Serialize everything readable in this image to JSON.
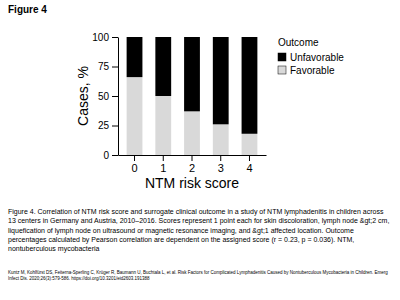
{
  "chart_data": {
    "type": "bar",
    "stacked": true,
    "title": "Figure 4",
    "x_label": "NTM risk score",
    "y_label": "Cases, %",
    "categories": [
      "0",
      "1",
      "2",
      "3",
      "4"
    ],
    "series": [
      {
        "name": "Unfavorable",
        "color": "#000000",
        "values": [
          34,
          50,
          63,
          74,
          82
        ]
      },
      {
        "name": "Favorable",
        "color": "#d9d9d9",
        "values": [
          66,
          50,
          37,
          26,
          18
        ]
      }
    ],
    "ylim": [
      0,
      100
    ],
    "yticks": [
      0,
      25,
      50,
      75,
      100
    ],
    "grid": false,
    "legend": "right",
    "legend_title": "Outcome",
    "annotations": [
      "Figure 4. Correlation of NTM risk score and surrogate clinical outcome in a study of NTM lymphadenitis in children across 13 centers in Germany and Austria, 2010–2016. Scores represent 1 point each for skin discoloration, lymph node &gt;2 cm, liquefication of lymph node on ultrasound or magnetic resonance imaging, and &gt;1 affected location. Outcome percentages calculated by Pearson correlation are dependent on the assigned score (r = 0.23, p = 0.036). NTM, nontuberculous mycobacteria",
      "Kuntz M, Kohlfürst DS, Feiterna-Sperling C, Krüger R, Baumann U, Buchtala L, et al. Risk Factors for Complicated Lymphadenitis Caused by Nontuberculous Mycobacteria in Children. Emerg Infect Dis. 2020;26(3):579-586. https://doi.org/10.3201/eid2603.191388"
    ]
  }
}
